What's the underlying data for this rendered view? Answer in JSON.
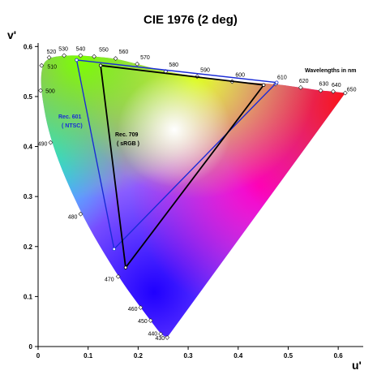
{
  "chart_data": {
    "type": "scatter",
    "title": "CIE 1976 (2 deg)",
    "xlabel": "u'",
    "ylabel": "v'",
    "xlim": [
      0,
      0.65
    ],
    "ylim": [
      0,
      0.62
    ],
    "x_ticks": [
      "0",
      "0.1",
      "0.2",
      "0.3",
      "0.4",
      "0.5",
      "0.6"
    ],
    "y_ticks": [
      "0",
      "0.1",
      "0.2",
      "0.3",
      "0.4",
      "0.5",
      "0.6"
    ],
    "grid": false,
    "wavelength_note": "Wavelengths in nm",
    "locus": [
      {
        "nm": "430",
        "u": 0.258,
        "v": 0.018
      },
      {
        "nm": "440",
        "u": 0.245,
        "v": 0.025
      },
      {
        "nm": "450",
        "u": 0.225,
        "v": 0.052
      },
      {
        "nm": "460",
        "u": 0.205,
        "v": 0.078
      },
      {
        "nm": "470",
        "u": 0.16,
        "v": 0.14
      },
      {
        "nm": "480",
        "u": 0.085,
        "v": 0.265
      },
      {
        "nm": "490",
        "u": 0.025,
        "v": 0.408
      },
      {
        "nm": "500",
        "u": 0.005,
        "v": 0.512
      },
      {
        "nm": "510",
        "u": 0.007,
        "v": 0.562
      },
      {
        "nm": "520",
        "u": 0.022,
        "v": 0.578
      },
      {
        "nm": "530",
        "u": 0.052,
        "v": 0.582
      },
      {
        "nm": "540",
        "u": 0.085,
        "v": 0.582
      },
      {
        "nm": "550",
        "u": 0.112,
        "v": 0.58
      },
      {
        "nm": "560",
        "u": 0.155,
        "v": 0.576
      },
      {
        "nm": "570",
        "u": 0.198,
        "v": 0.565
      },
      {
        "nm": "580",
        "u": 0.255,
        "v": 0.55
      },
      {
        "nm": "590",
        "u": 0.318,
        "v": 0.54
      },
      {
        "nm": "600",
        "u": 0.388,
        "v": 0.53
      },
      {
        "nm": "610",
        "u": 0.475,
        "v": 0.525
      },
      {
        "nm": "620",
        "u": 0.525,
        "v": 0.518
      },
      {
        "nm": "630",
        "u": 0.565,
        "v": 0.512
      },
      {
        "nm": "640",
        "u": 0.59,
        "v": 0.51
      },
      {
        "nm": "650",
        "u": 0.614,
        "v": 0.507
      }
    ],
    "gamuts": [
      {
        "name": "Rec. 601 ( NTSC)",
        "name_lines": [
          "Rec. 601",
          "( NTSC)"
        ],
        "color": "#1a2bd6",
        "vertices": [
          {
            "u": 0.077,
            "v": 0.573
          },
          {
            "u": 0.477,
            "v": 0.528
          },
          {
            "u": 0.152,
            "v": 0.195
          }
        ]
      },
      {
        "name": "Rec. 709 ( sRGB )",
        "name_lines": [
          "Rec. 709",
          "( sRGB )"
        ],
        "color": "#000000",
        "vertices": [
          {
            "u": 0.125,
            "v": 0.562
          },
          {
            "u": 0.451,
            "v": 0.523
          },
          {
            "u": 0.175,
            "v": 0.158
          }
        ]
      }
    ],
    "series": []
  }
}
